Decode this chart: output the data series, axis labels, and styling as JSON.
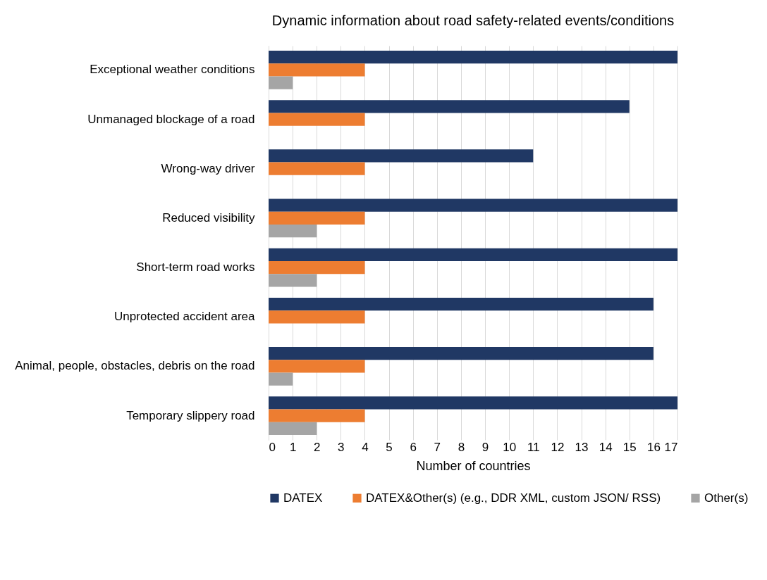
{
  "chart_data": {
    "type": "bar",
    "orientation": "horizontal",
    "title": "Dynamic information about road safety-related events/conditions",
    "xlabel": "Number of countries",
    "categories": [
      "Exceptional weather conditions",
      "Unmanaged blockage of a road",
      "Wrong-way driver",
      "Reduced visibility",
      "Short-term road works",
      "Unprotected accident area",
      "Animal, people, obstacles, debris on the road",
      "Temporary slippery road"
    ],
    "series": [
      {
        "name": "DATEX",
        "color": "#203864",
        "values": [
          17,
          15,
          11,
          17,
          17,
          16,
          16,
          17
        ]
      },
      {
        "name": "DATEX&Other(s) (e.g., DDR XML, custom JSON/ RSS)",
        "color": "#ed7d31",
        "values": [
          4,
          4,
          4,
          4,
          4,
          4,
          4,
          4
        ]
      },
      {
        "name": "Other(s)",
        "color": "#a5a5a5",
        "values": [
          1,
          null,
          null,
          2,
          2,
          null,
          1,
          2
        ]
      }
    ],
    "xlim": [
      0,
      17
    ],
    "xticks": [
      0,
      1,
      2,
      3,
      4,
      5,
      6,
      7,
      8,
      9,
      10,
      11,
      12,
      13,
      14,
      15,
      16,
      17
    ],
    "grid": "x",
    "legend": "bottom"
  }
}
